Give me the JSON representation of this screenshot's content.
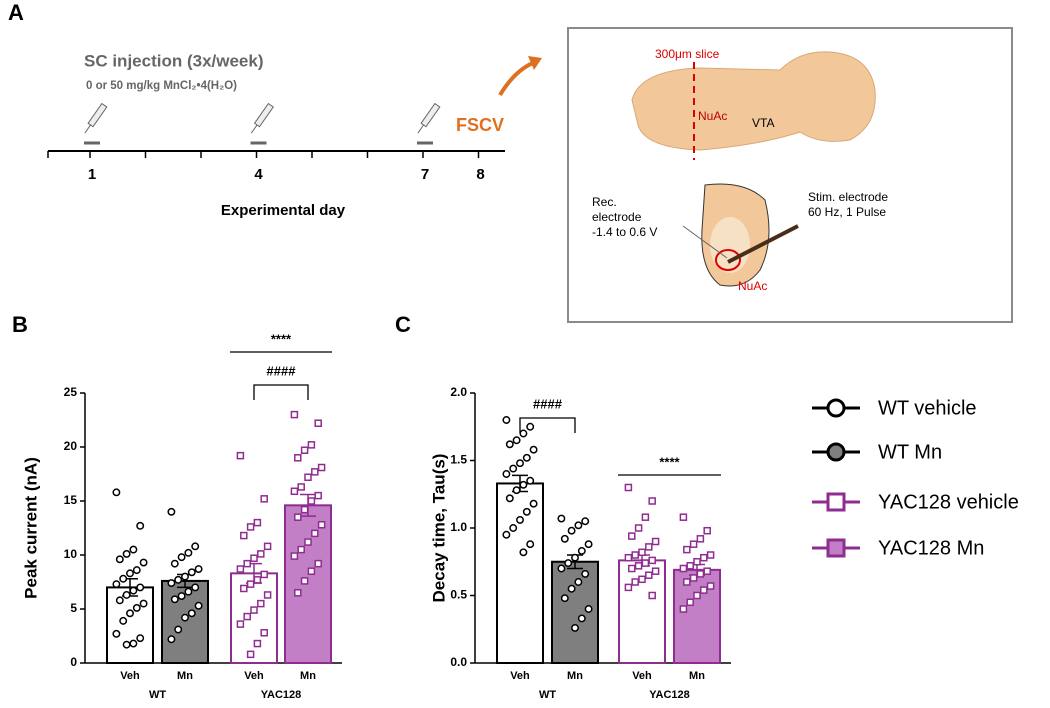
{
  "panel_a": {
    "label": "A",
    "injection_title": "SC injection (3x/week)",
    "dose": "0 or 50 mg/kg MnCl₂•4(H₂O)",
    "days": [
      1,
      4,
      7,
      8
    ],
    "injection_days": [
      1,
      4,
      7
    ],
    "x_label": "Experimental day",
    "fscv": "FSCV",
    "slice": "300μm slice",
    "nuac_top": "NuAc",
    "vta": "VTA",
    "rec_lines": [
      "Rec.",
      "electrode",
      "-1.4 to 0.6 V"
    ],
    "stim_lines": [
      "Stim. electrode",
      "60 Hz, 1 Pulse"
    ],
    "nuac_bottom": "NuAc"
  },
  "legend": {
    "entries": [
      {
        "name": "WT vehicle",
        "marker": "circle",
        "fill": "#ffffff",
        "stroke": "#000000"
      },
      {
        "name": "WT Mn",
        "marker": "circle",
        "fill": "#7f7f7f",
        "stroke": "#000000"
      },
      {
        "name": "YAC128 vehicle",
        "marker": "square",
        "fill": "#ffffff",
        "stroke": "#8e2c90"
      },
      {
        "name": "YAC128 Mn",
        "marker": "square",
        "fill": "#c27fc5",
        "stroke": "#8e2c90"
      }
    ]
  },
  "chart_data": [
    {
      "type": "bar",
      "panel_label": "B",
      "y_label": "Peak current (nA)",
      "categories": [
        "Veh",
        "Mn",
        "Veh",
        "Mn"
      ],
      "groups": [
        "WT",
        "YAC128"
      ],
      "fills": [
        "#ffffff",
        "#7f7f7f",
        "#ffffff",
        "#c27fc5"
      ],
      "strokes": [
        "#000000",
        "#000000",
        "#8e2c90",
        "#8e2c90"
      ],
      "markers": [
        "circle",
        "circle",
        "square",
        "square"
      ],
      "values": [
        7.0,
        7.6,
        8.3,
        14.6
      ],
      "errors": [
        0.8,
        0.6,
        0.9,
        1.0
      ],
      "points": [
        [
          15.8,
          12.7,
          10.5,
          10.1,
          9.6,
          9.3,
          8.6,
          8.3,
          7.8,
          7.3,
          7.0,
          6.7,
          6.3,
          5.8,
          5.5,
          5.1,
          4.6,
          3.9,
          2.7,
          2.3,
          1.8,
          1.7
        ],
        [
          14.0,
          10.8,
          10.2,
          9.8,
          9.2,
          8.7,
          8.4,
          8.0,
          7.7,
          7.4,
          7.0,
          6.6,
          6.2,
          5.9,
          5.3,
          4.6,
          4.2,
          3.1,
          2.2
        ],
        [
          19.2,
          15.2,
          13.0,
          12.6,
          11.8,
          10.8,
          10.1,
          9.7,
          9.2,
          8.7,
          8.2,
          7.7,
          7.3,
          6.9,
          6.3,
          5.5,
          4.9,
          4.3,
          3.6,
          2.8,
          1.8,
          0.8
        ],
        [
          23.0,
          22.2,
          20.2,
          19.7,
          19.0,
          18.1,
          17.7,
          17.2,
          16.3,
          15.9,
          15.5,
          15.0,
          14.2,
          13.5,
          12.8,
          12.0,
          11.2,
          10.5,
          9.9,
          9.2,
          8.5,
          7.6,
          6.5
        ]
      ],
      "ylim": [
        0,
        25
      ],
      "yticks": [
        0,
        5,
        10,
        15,
        20,
        25
      ],
      "annotations": [
        {
          "text": "****",
          "span": [
            2,
            3
          ],
          "style": "line"
        },
        {
          "text": "####",
          "span": [
            2,
            3
          ],
          "style": "bracket"
        }
      ]
    },
    {
      "type": "bar",
      "panel_label": "C",
      "y_label": "Decay time, Tau(s)",
      "categories": [
        "Veh",
        "Mn",
        "Veh",
        "Mn"
      ],
      "groups": [
        "WT",
        "YAC128"
      ],
      "fills": [
        "#ffffff",
        "#7f7f7f",
        "#ffffff",
        "#c27fc5"
      ],
      "strokes": [
        "#000000",
        "#000000",
        "#8e2c90",
        "#8e2c90"
      ],
      "markers": [
        "circle",
        "circle",
        "square",
        "square"
      ],
      "values": [
        1.33,
        0.75,
        0.76,
        0.69
      ],
      "errors": [
        0.06,
        0.05,
        0.04,
        0.04
      ],
      "points": [
        [
          1.8,
          1.75,
          1.7,
          1.65,
          1.62,
          1.58,
          1.52,
          1.48,
          1.44,
          1.4,
          1.35,
          1.32,
          1.28,
          1.22,
          1.18,
          1.12,
          1.06,
          1.0,
          0.95,
          0.88,
          0.82
        ],
        [
          1.07,
          1.05,
          1.02,
          0.98,
          0.92,
          0.88,
          0.83,
          0.78,
          0.74,
          0.7,
          0.66,
          0.6,
          0.55,
          0.48,
          0.4,
          0.33,
          0.26
        ],
        [
          1.3,
          1.2,
          1.08,
          1.0,
          0.94,
          0.9,
          0.86,
          0.82,
          0.8,
          0.78,
          0.76,
          0.74,
          0.72,
          0.7,
          0.68,
          0.65,
          0.62,
          0.6,
          0.56,
          0.5
        ],
        [
          1.08,
          0.98,
          0.92,
          0.88,
          0.84,
          0.8,
          0.78,
          0.75,
          0.72,
          0.7,
          0.68,
          0.66,
          0.63,
          0.6,
          0.57,
          0.54,
          0.5,
          0.45,
          0.4
        ]
      ],
      "ylim": [
        0,
        2
      ],
      "yticks": [
        {
          "value": 0,
          "label": "0.0"
        },
        {
          "value": 0.5,
          "label": "0.5"
        },
        {
          "value": 1,
          "label": "1.0"
        },
        {
          "value": 1.5,
          "label": "1.5"
        },
        {
          "value": 2,
          "label": "2.0"
        }
      ],
      "annotations": [
        {
          "text": "####",
          "span": [
            0,
            1
          ],
          "style": "bracket"
        },
        {
          "text": "****",
          "span": [
            2,
            3
          ],
          "style": "line"
        }
      ]
    }
  ]
}
